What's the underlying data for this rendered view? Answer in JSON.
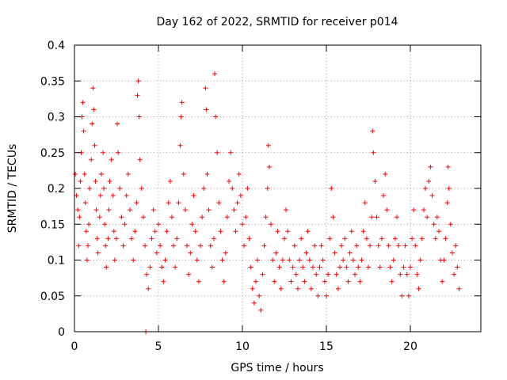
{
  "chart_data": {
    "type": "scatter",
    "title": "Day 162 of 2022, SRMTID for receiver p014",
    "xlabel": "GPS time / hours",
    "ylabel": "SRMTID / TECUs",
    "xlim": [
      0,
      24.2
    ],
    "ylim": [
      0,
      0.4
    ],
    "x_ticks": [
      0,
      5,
      10,
      15,
      20
    ],
    "x_tick_labels": [
      "0",
      "5",
      "10",
      "15",
      "20"
    ],
    "y_ticks": [
      0,
      0.05,
      0.1,
      0.15,
      0.2,
      0.25,
      0.3,
      0.35,
      0.4
    ],
    "y_tick_labels": [
      "0",
      "0.05",
      "0.1",
      "0.15",
      "0.2",
      "0.25",
      "0.3",
      "0.35",
      "0.4"
    ],
    "grid": true,
    "marker": "plus",
    "color": "#ff0000",
    "series": [
      {
        "name": "SRMTID p014",
        "points": [
          [
            0.05,
            0.22
          ],
          [
            0.12,
            0.19
          ],
          [
            0.2,
            0.17
          ],
          [
            0.25,
            0.12
          ],
          [
            0.3,
            0.16
          ],
          [
            0.35,
            0.21
          ],
          [
            0.4,
            0.25
          ],
          [
            0.45,
            0.3
          ],
          [
            0.5,
            0.32
          ],
          [
            0.55,
            0.28
          ],
          [
            0.6,
            0.22
          ],
          [
            0.65,
            0.18
          ],
          [
            0.7,
            0.14
          ],
          [
            0.75,
            0.1
          ],
          [
            0.8,
            0.12
          ],
          [
            0.85,
            0.15
          ],
          [
            0.9,
            0.2
          ],
          [
            1.0,
            0.24
          ],
          [
            1.05,
            0.29
          ],
          [
            1.1,
            0.34
          ],
          [
            1.15,
            0.31
          ],
          [
            1.2,
            0.26
          ],
          [
            1.25,
            0.21
          ],
          [
            1.3,
            0.17
          ],
          [
            1.35,
            0.13
          ],
          [
            1.4,
            0.11
          ],
          [
            1.5,
            0.16
          ],
          [
            1.55,
            0.19
          ],
          [
            1.6,
            0.22
          ],
          [
            1.7,
            0.25
          ],
          [
            1.75,
            0.2
          ],
          [
            1.8,
            0.15
          ],
          [
            1.85,
            0.12
          ],
          [
            1.9,
            0.09
          ],
          [
            2.0,
            0.13
          ],
          [
            2.05,
            0.17
          ],
          [
            2.1,
            0.21
          ],
          [
            2.2,
            0.24
          ],
          [
            2.3,
            0.19
          ],
          [
            2.35,
            0.14
          ],
          [
            2.4,
            0.1
          ],
          [
            2.5,
            0.13
          ],
          [
            2.55,
            0.29
          ],
          [
            2.6,
            0.25
          ],
          [
            2.7,
            0.2
          ],
          [
            2.8,
            0.16
          ],
          [
            2.9,
            0.12
          ],
          [
            3.0,
            0.15
          ],
          [
            3.1,
            0.19
          ],
          [
            3.2,
            0.22
          ],
          [
            3.3,
            0.17
          ],
          [
            3.4,
            0.13
          ],
          [
            3.5,
            0.1
          ],
          [
            3.6,
            0.14
          ],
          [
            3.7,
            0.18
          ],
          [
            3.75,
            0.33
          ],
          [
            3.8,
            0.35
          ],
          [
            3.85,
            0.3
          ],
          [
            3.9,
            0.24
          ],
          [
            4.0,
            0.2
          ],
          [
            4.1,
            0.16
          ],
          [
            4.2,
            0.12
          ],
          [
            4.25,
            0.0
          ],
          [
            4.3,
            0.08
          ],
          [
            4.4,
            0.06
          ],
          [
            4.5,
            0.09
          ],
          [
            4.6,
            0.13
          ],
          [
            4.7,
            0.17
          ],
          [
            4.8,
            0.14
          ],
          [
            4.9,
            0.11
          ],
          [
            5.0,
            0.15
          ],
          [
            5.1,
            0.12
          ],
          [
            5.2,
            0.09
          ],
          [
            5.3,
            0.07
          ],
          [
            5.4,
            0.1
          ],
          [
            5.5,
            0.14
          ],
          [
            5.6,
            0.18
          ],
          [
            5.7,
            0.21
          ],
          [
            5.8,
            0.16
          ],
          [
            5.9,
            0.12
          ],
          [
            6.0,
            0.09
          ],
          [
            6.1,
            0.13
          ],
          [
            6.2,
            0.18
          ],
          [
            6.3,
            0.26
          ],
          [
            6.35,
            0.3
          ],
          [
            6.4,
            0.32
          ],
          [
            6.5,
            0.22
          ],
          [
            6.6,
            0.17
          ],
          [
            6.7,
            0.12
          ],
          [
            6.8,
            0.08
          ],
          [
            6.9,
            0.11
          ],
          [
            7.0,
            0.15
          ],
          [
            7.1,
            0.19
          ],
          [
            7.2,
            0.14
          ],
          [
            7.3,
            0.1
          ],
          [
            7.4,
            0.07
          ],
          [
            7.5,
            0.12
          ],
          [
            7.6,
            0.16
          ],
          [
            7.7,
            0.2
          ],
          [
            7.8,
            0.34
          ],
          [
            7.85,
            0.31
          ],
          [
            7.9,
            0.22
          ],
          [
            8.0,
            0.17
          ],
          [
            8.1,
            0.12
          ],
          [
            8.2,
            0.09
          ],
          [
            8.3,
            0.13
          ],
          [
            8.35,
            0.36
          ],
          [
            8.4,
            0.3
          ],
          [
            8.5,
            0.25
          ],
          [
            8.6,
            0.18
          ],
          [
            8.7,
            0.14
          ],
          [
            8.8,
            0.1
          ],
          [
            8.9,
            0.07
          ],
          [
            9.0,
            0.11
          ],
          [
            9.1,
            0.16
          ],
          [
            9.2,
            0.21
          ],
          [
            9.3,
            0.25
          ],
          [
            9.4,
            0.2
          ],
          [
            9.5,
            0.17
          ],
          [
            9.6,
            0.14
          ],
          [
            9.7,
            0.18
          ],
          [
            9.8,
            0.22
          ],
          [
            9.9,
            0.19
          ],
          [
            10.0,
            0.15
          ],
          [
            10.1,
            0.12
          ],
          [
            10.2,
            0.16
          ],
          [
            10.3,
            0.2
          ],
          [
            10.4,
            0.13
          ],
          [
            10.5,
            0.09
          ],
          [
            10.6,
            0.06
          ],
          [
            10.7,
            0.04
          ],
          [
            10.8,
            0.07
          ],
          [
            10.9,
            0.1
          ],
          [
            11.0,
            0.05
          ],
          [
            11.1,
            0.03
          ],
          [
            11.2,
            0.08
          ],
          [
            11.3,
            0.12
          ],
          [
            11.4,
            0.16
          ],
          [
            11.5,
            0.2
          ],
          [
            11.55,
            0.26
          ],
          [
            11.6,
            0.23
          ],
          [
            11.7,
            0.15
          ],
          [
            11.8,
            0.1
          ],
          [
            11.9,
            0.07
          ],
          [
            12.0,
            0.11
          ],
          [
            12.1,
            0.14
          ],
          [
            12.2,
            0.09
          ],
          [
            12.3,
            0.06
          ],
          [
            12.4,
            0.1
          ],
          [
            12.5,
            0.13
          ],
          [
            12.6,
            0.17
          ],
          [
            12.7,
            0.14
          ],
          [
            12.8,
            0.1
          ],
          [
            12.9,
            0.07
          ],
          [
            13.0,
            0.09
          ],
          [
            13.1,
            0.12
          ],
          [
            13.2,
            0.08
          ],
          [
            13.3,
            0.06
          ],
          [
            13.4,
            0.1
          ],
          [
            13.5,
            0.13
          ],
          [
            13.6,
            0.09
          ],
          [
            13.7,
            0.07
          ],
          [
            13.8,
            0.11
          ],
          [
            13.9,
            0.14
          ],
          [
            14.0,
            0.1
          ],
          [
            14.1,
            0.06
          ],
          [
            14.2,
            0.09
          ],
          [
            14.3,
            0.12
          ],
          [
            14.4,
            0.08
          ],
          [
            14.5,
            0.05
          ],
          [
            14.6,
            0.09
          ],
          [
            14.7,
            0.12
          ],
          [
            14.8,
            0.1
          ],
          [
            14.9,
            0.07
          ],
          [
            15.0,
            0.05
          ],
          [
            15.1,
            0.08
          ],
          [
            15.2,
            0.13
          ],
          [
            15.3,
            0.2
          ],
          [
            15.4,
            0.16
          ],
          [
            15.5,
            0.11
          ],
          [
            15.6,
            0.08
          ],
          [
            15.7,
            0.06
          ],
          [
            15.8,
            0.09
          ],
          [
            15.9,
            0.12
          ],
          [
            16.0,
            0.1
          ],
          [
            16.1,
            0.13
          ],
          [
            16.2,
            0.09
          ],
          [
            16.3,
            0.07
          ],
          [
            16.4,
            0.11
          ],
          [
            16.5,
            0.14
          ],
          [
            16.6,
            0.1
          ],
          [
            16.7,
            0.08
          ],
          [
            16.8,
            0.12
          ],
          [
            16.9,
            0.09
          ],
          [
            17.0,
            0.07
          ],
          [
            17.1,
            0.1
          ],
          [
            17.2,
            0.14
          ],
          [
            17.3,
            0.18
          ],
          [
            17.4,
            0.13
          ],
          [
            17.5,
            0.09
          ],
          [
            17.6,
            0.12
          ],
          [
            17.7,
            0.16
          ],
          [
            17.75,
            0.28
          ],
          [
            17.8,
            0.25
          ],
          [
            17.9,
            0.21
          ],
          [
            18.0,
            0.16
          ],
          [
            18.1,
            0.12
          ],
          [
            18.2,
            0.09
          ],
          [
            18.3,
            0.13
          ],
          [
            18.4,
            0.19
          ],
          [
            18.5,
            0.22
          ],
          [
            18.6,
            0.17
          ],
          [
            18.7,
            0.12
          ],
          [
            18.8,
            0.09
          ],
          [
            18.9,
            0.07
          ],
          [
            19.0,
            0.1
          ],
          [
            19.1,
            0.13
          ],
          [
            19.2,
            0.16
          ],
          [
            19.3,
            0.12
          ],
          [
            19.4,
            0.08
          ],
          [
            19.5,
            0.05
          ],
          [
            19.6,
            0.09
          ],
          [
            19.7,
            0.12
          ],
          [
            19.8,
            0.08
          ],
          [
            19.9,
            0.05
          ],
          [
            20.0,
            0.09
          ],
          [
            20.1,
            0.13
          ],
          [
            20.2,
            0.17
          ],
          [
            20.3,
            0.12
          ],
          [
            20.4,
            0.08
          ],
          [
            20.5,
            0.06
          ],
          [
            20.6,
            0.1
          ],
          [
            20.7,
            0.13
          ],
          [
            20.8,
            0.17
          ],
          [
            20.9,
            0.2
          ],
          [
            21.0,
            0.16
          ],
          [
            21.1,
            0.21
          ],
          [
            21.2,
            0.23
          ],
          [
            21.3,
            0.19
          ],
          [
            21.4,
            0.15
          ],
          [
            21.5,
            0.13
          ],
          [
            21.6,
            0.16
          ],
          [
            21.7,
            0.14
          ],
          [
            21.8,
            0.1
          ],
          [
            21.9,
            0.07
          ],
          [
            22.0,
            0.1
          ],
          [
            22.1,
            0.13
          ],
          [
            22.2,
            0.18
          ],
          [
            22.25,
            0.23
          ],
          [
            22.3,
            0.2
          ],
          [
            22.4,
            0.15
          ],
          [
            22.5,
            0.11
          ],
          [
            22.6,
            0.08
          ],
          [
            22.7,
            0.12
          ],
          [
            22.8,
            0.09
          ],
          [
            22.9,
            0.06
          ]
        ]
      }
    ]
  }
}
